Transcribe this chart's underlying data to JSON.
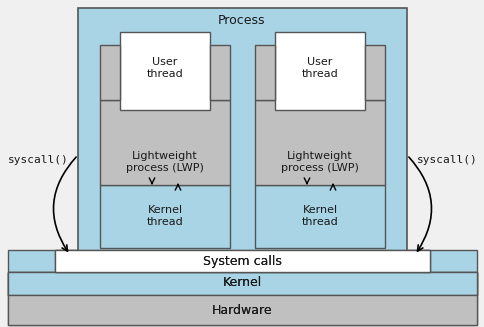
{
  "bg_color": "#f0f0f0",
  "light_blue": "#a8d4e6",
  "white": "#ffffff",
  "light_gray": "#c0c0c0",
  "text_color": "#1a1a1a",
  "border_color": "#555555",
  "process_label": "Process",
  "user_thread_label": "User\nthread",
  "lwp_label": "Lightweight\nprocess (LWP)",
  "kernel_thread_label": "Kernel\nthread",
  "syscall_label": "syscall()",
  "syscalls_label": "System calls",
  "kernel_label": "Kernel",
  "hardware_label": "Hardware"
}
